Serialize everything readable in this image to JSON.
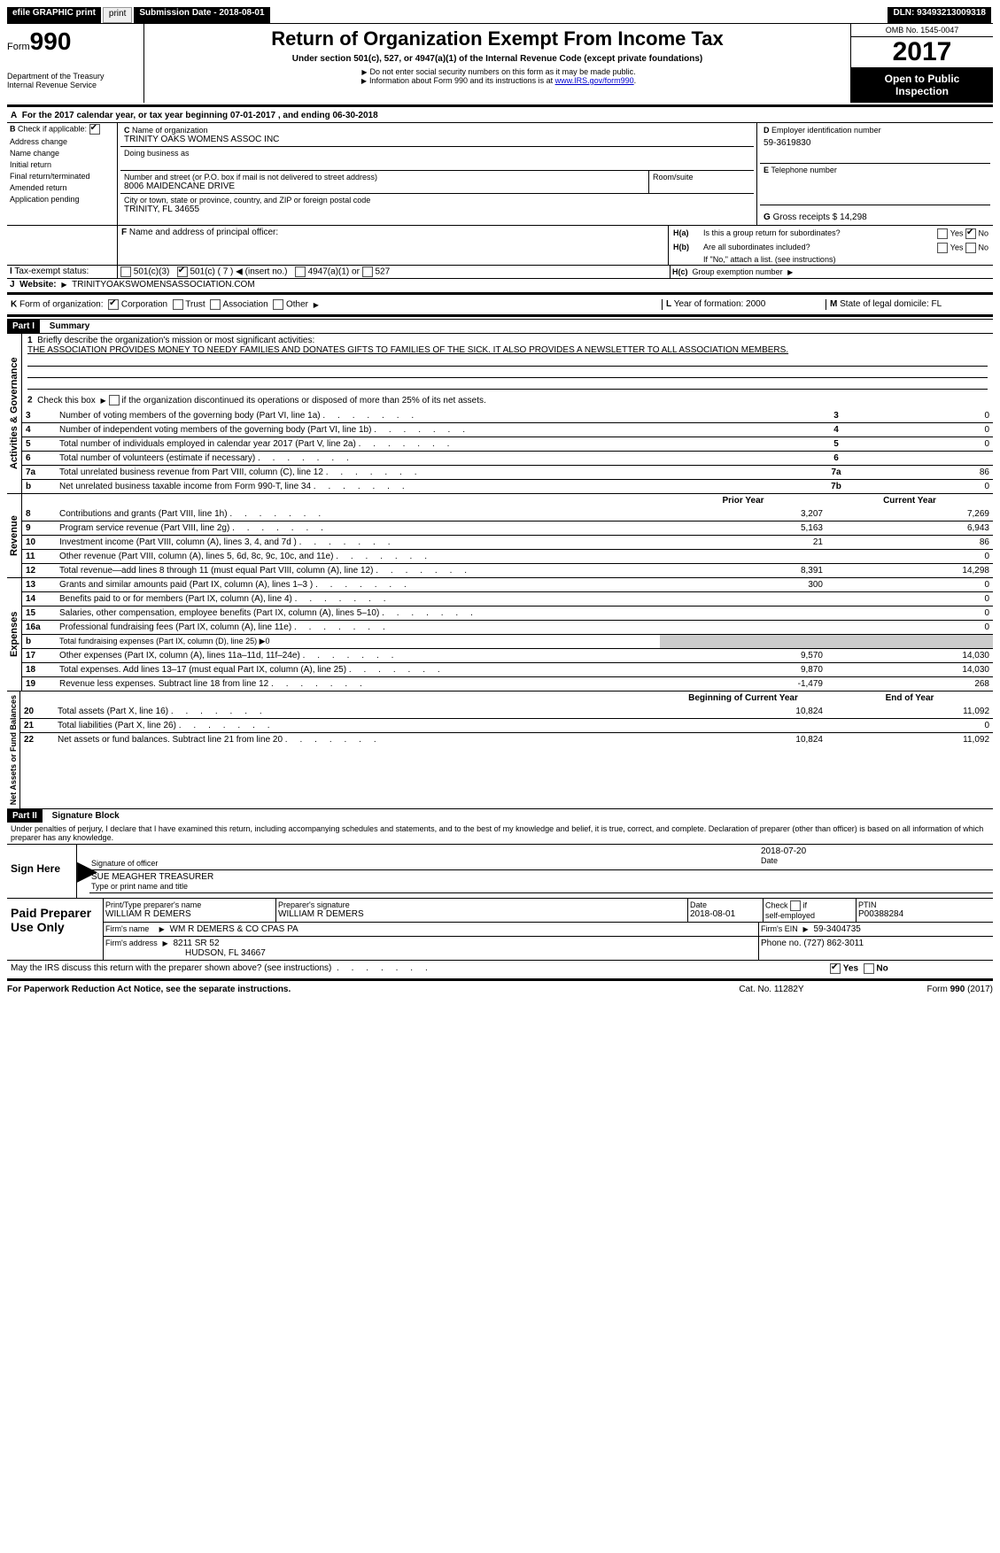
{
  "topbar": {
    "efile": "efile GRAPHIC print",
    "submission": "Submission Date - 2018-08-01",
    "dln": "DLN: 93493213009318"
  },
  "header": {
    "form_word": "Form",
    "form_num": "990",
    "dept1": "Department of the Treasury",
    "dept2": "Internal Revenue Service",
    "title": "Return of Organization Exempt From Income Tax",
    "sub1": "Under section 501(c), 527, or 4947(a)(1) of the Internal Revenue Code (except private foundations)",
    "sub2": "Do not enter social security numbers on this form as it may be made public.",
    "sub3_a": "Information about Form 990 and its instructions is at ",
    "sub3_link": "www.IRS.gov/form990",
    "omb": "OMB No. 1545-0047",
    "year": "2017",
    "inspect1": "Open to Public",
    "inspect2": "Inspection"
  },
  "line_a": "For the 2017 calendar year, or tax year beginning 07-01-2017     , and ending 06-30-2018",
  "section_b": {
    "label": "Check if applicable:",
    "opts": [
      "Address change",
      "Name change",
      "Initial return",
      "Final return/terminated",
      "Amended return",
      "Application pending"
    ],
    "c_label": "Name of organization",
    "c_name": "TRINITY OAKS WOMENS ASSOC INC",
    "dba_label": "Doing business as",
    "addr_label": "Number and street (or P.O. box if mail is not delivered to street address)",
    "addr": "8006 MAIDENCANE DRIVE",
    "room_label": "Room/suite",
    "city_label": "City or town, state or province, country, and ZIP or foreign postal code",
    "city": "TRINITY, FL  34655",
    "d_label": "Employer identification number",
    "d_val": "59-3619830",
    "e_label": "Telephone number",
    "g_label": "Gross receipts $ 14,298"
  },
  "section_f": {
    "label": "Name and address of principal officer:",
    "ha": "Is this a group return for subordinates?",
    "hb": "Are all subordinates included?",
    "hb_note": "If \"No,\" attach a list. (see instructions)",
    "hc": "Group exemption number",
    "yes": "Yes",
    "no": "No"
  },
  "section_i": {
    "label": "Tax-exempt status:",
    "o1": "501(c)(3)",
    "o2a": "501(c) ( 7 )",
    "o2b": "(insert no.)",
    "o3": "4947(a)(1) or",
    "o4": "527"
  },
  "section_j": {
    "label": "Website:",
    "val": "TRINITYOAKSWOMENSASSOCIATION.COM"
  },
  "section_k": {
    "label": "Form of organization:",
    "opts": [
      "Corporation",
      "Trust",
      "Association",
      "Other"
    ]
  },
  "section_l": {
    "label": "Year of formation: 2000"
  },
  "section_m": {
    "label": "State of legal domicile: FL"
  },
  "part1": {
    "header": "Part I",
    "title": "Summary",
    "line1_label": "Briefly describe the organization's mission or most significant activities:",
    "line1_text": "THE ASSOCIATION PROVIDES MONEY TO NEEDY FAMILIES AND DONATES GIFTS TO FAMILIES OF THE SICK. IT ALSO PROVIDES A NEWSLETTER TO ALL ASSOCIATION MEMBERS.",
    "line2": "Check this box          if the organization discontinued its operations or disposed of more than 25% of its net assets.",
    "side_gov": "Activities & Governance",
    "side_rev": "Revenue",
    "side_exp": "Expenses",
    "side_net": "Net Assets or Fund Balances",
    "col_prior": "Prior Year",
    "col_current": "Current Year",
    "col_begin": "Beginning of Current Year",
    "col_end": "End of Year",
    "gov_rows": [
      {
        "n": "3",
        "t": "Number of voting members of the governing body (Part VI, line 1a)",
        "b": "3",
        "v": "0"
      },
      {
        "n": "4",
        "t": "Number of independent voting members of the governing body (Part VI, line 1b)",
        "b": "4",
        "v": "0"
      },
      {
        "n": "5",
        "t": "Total number of individuals employed in calendar year 2017 (Part V, line 2a)",
        "b": "5",
        "v": "0"
      },
      {
        "n": "6",
        "t": "Total number of volunteers (estimate if necessary)",
        "b": "6",
        "v": ""
      },
      {
        "n": "7a",
        "t": "Total unrelated business revenue from Part VIII, column (C), line 12",
        "b": "7a",
        "v": "86"
      },
      {
        "n": "b",
        "t": "Net unrelated business taxable income from Form 990-T, line 34",
        "b": "7b",
        "v": "0"
      }
    ],
    "rev_rows": [
      {
        "n": "8",
        "t": "Contributions and grants (Part VIII, line 1h)",
        "p": "3,207",
        "c": "7,269"
      },
      {
        "n": "9",
        "t": "Program service revenue (Part VIII, line 2g)",
        "p": "5,163",
        "c": "6,943"
      },
      {
        "n": "10",
        "t": "Investment income (Part VIII, column (A), lines 3, 4, and 7d )",
        "p": "21",
        "c": "86"
      },
      {
        "n": "11",
        "t": "Other revenue (Part VIII, column (A), lines 5, 6d, 8c, 9c, 10c, and 11e)",
        "p": "",
        "c": "0"
      },
      {
        "n": "12",
        "t": "Total revenue—add lines 8 through 11 (must equal Part VIII, column (A), line 12)",
        "p": "8,391",
        "c": "14,298"
      }
    ],
    "exp_rows": [
      {
        "n": "13",
        "t": "Grants and similar amounts paid (Part IX, column (A), lines 1–3 )",
        "p": "300",
        "c": "0"
      },
      {
        "n": "14",
        "t": "Benefits paid to or for members (Part IX, column (A), line 4)",
        "p": "",
        "c": "0"
      },
      {
        "n": "15",
        "t": "Salaries, other compensation, employee benefits (Part IX, column (A), lines 5–10)",
        "p": "",
        "c": "0"
      },
      {
        "n": "16a",
        "t": "Professional fundraising fees (Part IX, column (A), line 11e)",
        "p": "",
        "c": "0"
      },
      {
        "n": "b",
        "t": "Total fundraising expenses (Part IX, column (D), line 25) ▶0",
        "p": "shade",
        "c": "shade"
      },
      {
        "n": "17",
        "t": "Other expenses (Part IX, column (A), lines 11a–11d, 11f–24e)",
        "p": "9,570",
        "c": "14,030"
      },
      {
        "n": "18",
        "t": "Total expenses. Add lines 13–17 (must equal Part IX, column (A), line 25)",
        "p": "9,870",
        "c": "14,030"
      },
      {
        "n": "19",
        "t": "Revenue less expenses. Subtract line 18 from line 12",
        "p": "-1,479",
        "c": "268"
      }
    ],
    "net_rows": [
      {
        "n": "20",
        "t": "Total assets (Part X, line 16)",
        "p": "10,824",
        "c": "11,092"
      },
      {
        "n": "21",
        "t": "Total liabilities (Part X, line 26)",
        "p": "",
        "c": "0"
      },
      {
        "n": "22",
        "t": "Net assets or fund balances. Subtract line 21 from line 20",
        "p": "10,824",
        "c": "11,092"
      }
    ]
  },
  "part2": {
    "header": "Part II",
    "title": "Signature Block",
    "decl": "Under penalties of perjury, I declare that I have examined this return, including accompanying schedules and statements, and to the best of my knowledge and belief, it is true, correct, and complete. Declaration of preparer (other than officer) is based on all information of which preparer has any knowledge.",
    "sign_here": "Sign Here",
    "sig_officer": "Signature of officer",
    "sig_date": "2018-07-20",
    "date_label": "Date",
    "officer_name": "SUE MEAGHER TREASURER",
    "type_label": "Type or print name and title",
    "paid": "Paid Preparer Use Only",
    "prep_name_label": "Print/Type preparer's name",
    "prep_name": "WILLIAM R DEMERS",
    "prep_sig_label": "Preparer's signature",
    "prep_sig": "WILLIAM R DEMERS",
    "prep_date_label": "Date",
    "prep_date": "2018-08-01",
    "self_emp": "self-employed",
    "check_label": "Check",
    "ptin_label": "PTIN",
    "ptin": "P00388284",
    "firm_name_label": "Firm's name",
    "firm_name": "WM R DEMERS & CO CPAS PA",
    "firm_ein_label": "Firm's EIN",
    "firm_ein": "59-3404735",
    "firm_addr_label": "Firm's address",
    "firm_addr1": "8211 SR 52",
    "firm_addr2": "HUDSON, FL  34667",
    "phone_label": "Phone no. (727) 862-3011",
    "discuss": "May the IRS discuss this return with the preparer shown above? (see instructions)",
    "if_label": "if"
  },
  "footer": {
    "pra": "For Paperwork Reduction Act Notice, see the separate instructions.",
    "cat": "Cat. No. 11282Y",
    "form": "Form 990 (2017)"
  }
}
